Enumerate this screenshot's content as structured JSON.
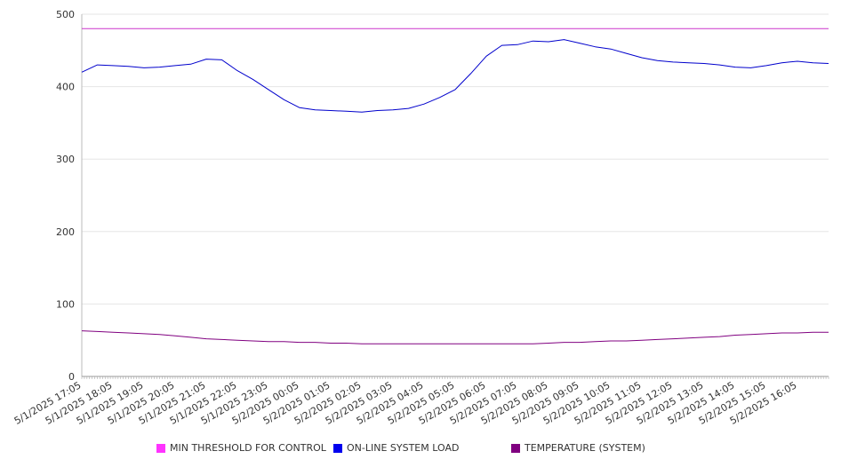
{
  "chart_data": {
    "type": "line",
    "title": "",
    "xlabel": "",
    "ylabel": "",
    "ylim": [
      0,
      500
    ],
    "yticks": [
      0,
      100,
      200,
      300,
      400,
      500
    ],
    "grid": true,
    "legend_position": "bottom",
    "x_tick_labels": [
      "5/1/2025 17:05",
      "5/1/2025 18:05",
      "5/1/2025 19:05",
      "5/1/2025 20:05",
      "5/1/2025 21:05",
      "5/1/2025 22:05",
      "5/1/2025 23:05",
      "5/2/2025 00:05",
      "5/2/2025 01:05",
      "5/2/2025 02:05",
      "5/2/2025 03:05",
      "5/2/2025 04:05",
      "5/2/2025 05:05",
      "5/2/2025 06:05",
      "5/2/2025 07:05",
      "5/2/2025 08:05",
      "5/2/2025 09:05",
      "5/2/2025 10:05",
      "5/2/2025 11:05",
      "5/2/2025 12:05",
      "5/2/2025 13:05",
      "5/2/2025 14:05",
      "5/2/2025 15:05",
      "5/2/2025 16:05"
    ],
    "x": [
      "5/1/2025 17:05",
      "5/1/2025 17:35",
      "5/1/2025 18:05",
      "5/1/2025 18:35",
      "5/1/2025 19:05",
      "5/1/2025 19:35",
      "5/1/2025 20:05",
      "5/1/2025 20:35",
      "5/1/2025 21:05",
      "5/1/2025 21:35",
      "5/1/2025 22:05",
      "5/1/2025 22:35",
      "5/1/2025 23:05",
      "5/1/2025 23:35",
      "5/2/2025 00:05",
      "5/2/2025 00:35",
      "5/2/2025 01:05",
      "5/2/2025 01:35",
      "5/2/2025 02:05",
      "5/2/2025 02:35",
      "5/2/2025 03:05",
      "5/2/2025 03:35",
      "5/2/2025 04:05",
      "5/2/2025 04:35",
      "5/2/2025 05:05",
      "5/2/2025 05:35",
      "5/2/2025 06:05",
      "5/2/2025 06:35",
      "5/2/2025 07:05",
      "5/2/2025 07:35",
      "5/2/2025 08:05",
      "5/2/2025 08:35",
      "5/2/2025 09:05",
      "5/2/2025 09:35",
      "5/2/2025 10:05",
      "5/2/2025 10:35",
      "5/2/2025 11:05",
      "5/2/2025 11:35",
      "5/2/2025 12:05",
      "5/2/2025 12:35",
      "5/2/2025 13:05",
      "5/2/2025 13:35",
      "5/2/2025 14:05",
      "5/2/2025 14:35",
      "5/2/2025 15:05",
      "5/2/2025 15:35",
      "5/2/2025 16:05",
      "5/2/2025 16:35",
      "5/2/2025 17:00"
    ],
    "series": [
      {
        "name": "MIN THRESHOLD FOR CONTROL",
        "color": "#cc33cc",
        "values": [
          480,
          480,
          480,
          480,
          480,
          480,
          480,
          480,
          480,
          480,
          480,
          480,
          480,
          480,
          480,
          480,
          480,
          480,
          480,
          480,
          480,
          480,
          480,
          480,
          480,
          480,
          480,
          480,
          480,
          480,
          480,
          480,
          480,
          480,
          480,
          480,
          480,
          480,
          480,
          480,
          480,
          480,
          480,
          480,
          480,
          480,
          480,
          480,
          480
        ]
      },
      {
        "name": "ON-LINE SYSTEM LOAD",
        "color": "#0000cc",
        "values": [
          420,
          430,
          429,
          428,
          426,
          427,
          429,
          431,
          438,
          437,
          422,
          410,
          396,
          382,
          371,
          368,
          367,
          366,
          365,
          367,
          368,
          370,
          376,
          385,
          396,
          418,
          442,
          457,
          458,
          463,
          462,
          465,
          460,
          455,
          452,
          446,
          440,
          436,
          434,
          433,
          432,
          430,
          427,
          426,
          429,
          433,
          435,
          433,
          432
        ]
      },
      {
        "name": "TEMPERATURE (SYSTEM)",
        "color": "#800080",
        "values": [
          63,
          62,
          61,
          60,
          59,
          58,
          56,
          54,
          52,
          51,
          50,
          49,
          48,
          48,
          47,
          47,
          46,
          46,
          45,
          45,
          45,
          45,
          45,
          45,
          45,
          45,
          45,
          45,
          45,
          45,
          46,
          47,
          47,
          48,
          49,
          49,
          50,
          51,
          52,
          53,
          54,
          55,
          57,
          58,
          59,
          60,
          60,
          61,
          61
        ]
      }
    ]
  }
}
